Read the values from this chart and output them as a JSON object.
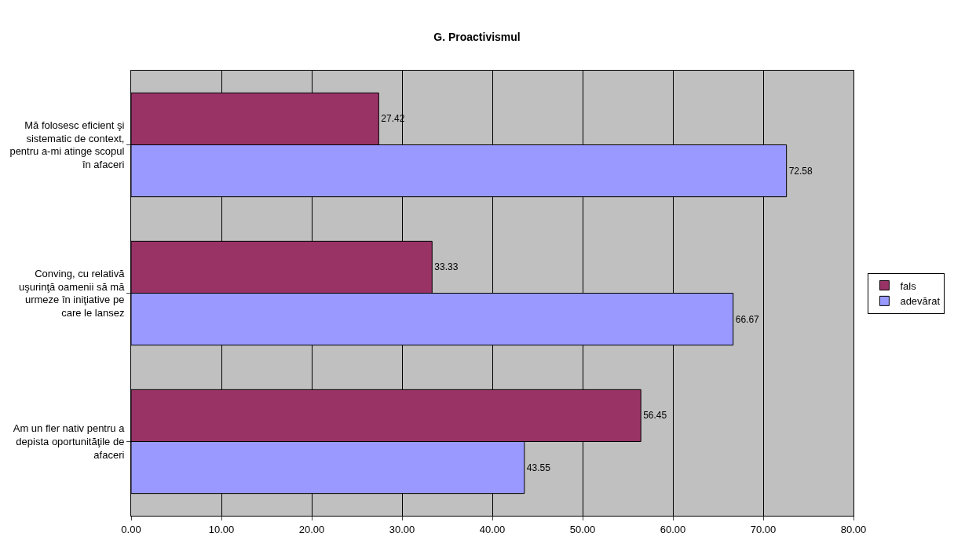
{
  "chart_data": {
    "type": "bar",
    "orientation": "horizontal",
    "title": "G. Proactivismul",
    "categories": [
      "Mă folosesc eficient şi sistematic de context, pentru a-mi atinge scopul în afaceri",
      "Conving, cu relativă uşurinţă oamenii să mă urmeze în iniţiative pe care le lansez",
      "Am un fler nativ pentru a depista oportunităţile de afaceri"
    ],
    "series": [
      {
        "name": "fals",
        "color": "#993366",
        "values": [
          27.42,
          33.33,
          56.45
        ]
      },
      {
        "name": "adevărat",
        "color": "#9999ff",
        "values": [
          72.58,
          66.67,
          43.55
        ]
      }
    ],
    "xlim": [
      0,
      80
    ],
    "xticks": [
      {
        "value": 0,
        "label": "0.00"
      },
      {
        "value": 10,
        "label": "10.00"
      },
      {
        "value": 20,
        "label": "20.00"
      },
      {
        "value": 30,
        "label": "30.00"
      },
      {
        "value": 40,
        "label": "40.00"
      },
      {
        "value": 50,
        "label": "50.00"
      },
      {
        "value": 60,
        "label": "60.00"
      },
      {
        "value": 70,
        "label": "70.00"
      },
      {
        "value": 80,
        "label": "80.00"
      }
    ],
    "grid": "x",
    "legend": "right",
    "data_labels": true
  }
}
